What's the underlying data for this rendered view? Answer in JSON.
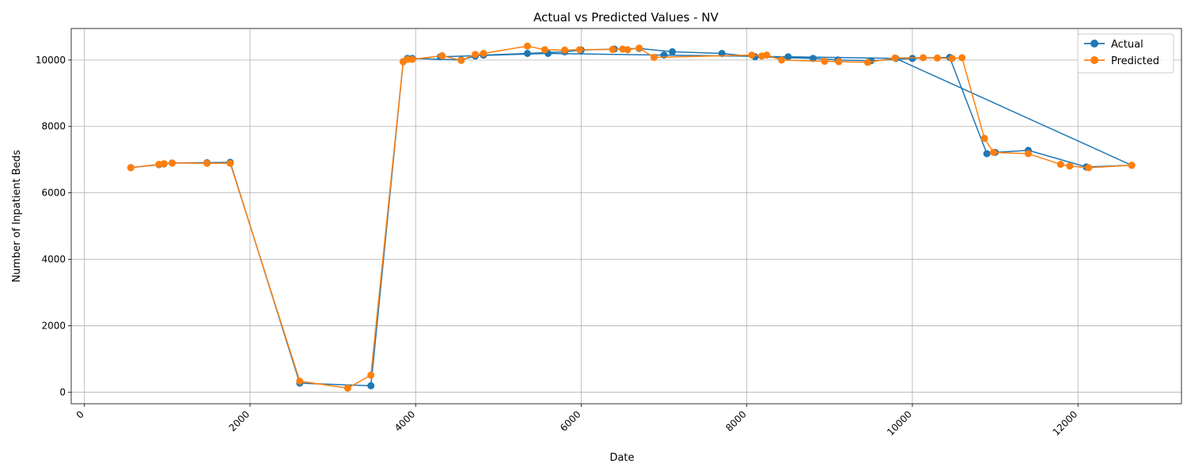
{
  "chart_data": {
    "type": "line",
    "title": "Actual vs Predicted Values - NV",
    "xlabel": "Date",
    "ylabel": "Number of Inpatient Beds",
    "xlim": [
      -160,
      13250
    ],
    "ylim": [
      -350,
      10950
    ],
    "xticks": [
      0,
      2000,
      4000,
      6000,
      8000,
      10000,
      12000
    ],
    "yticks": [
      0,
      2000,
      4000,
      6000,
      8000,
      10000
    ],
    "grid": true,
    "legend_position": "top-right",
    "series": [
      {
        "name": "Actual",
        "color": "#1f77b4",
        "x": [
          560,
          900,
          960,
          1060,
          1480,
          1760,
          2600,
          3460,
          3850,
          3900,
          3960,
          4550,
          4720,
          4820,
          5350,
          5800,
          6000,
          6400,
          6700,
          7100,
          7700,
          8100,
          8800,
          9100,
          9500,
          10000,
          10450,
          10900,
          11000,
          11400,
          12100,
          12650,
          9800,
          8500,
          7000,
          5600,
          4300
        ],
        "y": [
          6760,
          6850,
          6870,
          6900,
          6910,
          6920,
          270,
          190,
          9950,
          10050,
          10050,
          10000,
          10120,
          10150,
          10200,
          10250,
          10300,
          10330,
          10350,
          10250,
          10200,
          10100,
          10050,
          10000,
          9980,
          10050,
          10080,
          7180,
          7220,
          7280,
          6780,
          6830,
          10050,
          10100,
          10150,
          10200,
          10100
        ]
      },
      {
        "name": "Predicted",
        "color": "#ff7f0e",
        "x": [
          560,
          900,
          960,
          1060,
          1480,
          1760,
          2600,
          3180,
          3460,
          3850,
          3900,
          3960,
          4320,
          4550,
          4720,
          4820,
          5350,
          5560,
          5800,
          5980,
          6380,
          6500,
          6560,
          6700,
          6880,
          8060,
          8180,
          8240,
          8420,
          8940,
          9110,
          9460,
          9790,
          10130,
          10300,
          10480,
          10600,
          10870,
          10980,
          11400,
          11790,
          11900,
          12130,
          12650
        ],
        "y": [
          6760,
          6860,
          6880,
          6900,
          6890,
          6890,
          330,
          120,
          510,
          9950,
          10020,
          10020,
          10130,
          9990,
          10170,
          10200,
          10420,
          10310,
          10300,
          10310,
          10320,
          10330,
          10310,
          10360,
          10080,
          10150,
          10120,
          10150,
          10000,
          9960,
          9950,
          9930,
          10060,
          10070,
          10060,
          10050,
          10070,
          7640,
          7220,
          7180,
          6860,
          6810,
          6760,
          6830
        ]
      }
    ]
  }
}
